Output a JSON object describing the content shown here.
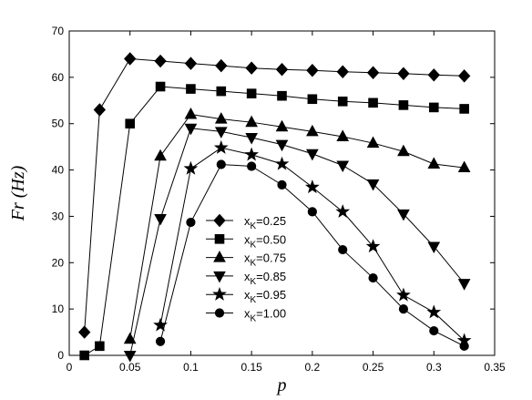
{
  "chart_data": {
    "type": "line",
    "xlabel": "p",
    "ylabel": "Fr  (Hz)",
    "xlim": [
      0,
      0.35
    ],
    "ylim": [
      0,
      70
    ],
    "xticks": [
      0,
      0.05,
      0.1,
      0.15,
      0.2,
      0.25,
      0.3,
      0.35
    ],
    "yticks": [
      0,
      10,
      20,
      30,
      40,
      50,
      60,
      70
    ],
    "xtick_labels": [
      "0",
      "0.05",
      "0.1",
      "0.15",
      "0.2",
      "0.25",
      "0.3",
      "0.35"
    ],
    "ytick_labels": [
      "0",
      "10",
      "20",
      "30",
      "40",
      "50",
      "60",
      "70"
    ],
    "grid": false,
    "legend_position": "center-left",
    "series": [
      {
        "legend_main": "x",
        "legend_sub": "K",
        "legend_value": "=0.25",
        "marker": "diamond",
        "x": [
          0.0125,
          0.025,
          0.05,
          0.075,
          0.1,
          0.125,
          0.15,
          0.175,
          0.2,
          0.225,
          0.25,
          0.275,
          0.3,
          0.325
        ],
        "y": [
          5,
          53,
          64,
          63.5,
          63,
          62.5,
          62,
          61.7,
          61.5,
          61.2,
          61,
          60.8,
          60.5,
          60.3
        ]
      },
      {
        "legend_main": "x",
        "legend_sub": "K",
        "legend_value": "=0.50",
        "marker": "square",
        "x": [
          0.0125,
          0.025,
          0.05,
          0.075,
          0.1,
          0.125,
          0.15,
          0.175,
          0.2,
          0.225,
          0.25,
          0.275,
          0.3,
          0.325
        ],
        "y": [
          0,
          2,
          50,
          58,
          57.5,
          57,
          56.5,
          56,
          55.3,
          54.8,
          54.5,
          54,
          53.5,
          53.2
        ]
      },
      {
        "legend_main": "x",
        "legend_sub": "K",
        "legend_value": "=0.75",
        "marker": "triangle-up",
        "x": [
          0.05,
          0.075,
          0.1,
          0.125,
          0.15,
          0.175,
          0.2,
          0.225,
          0.25,
          0.275,
          0.3,
          0.325
        ],
        "y": [
          3.5,
          43,
          52,
          51,
          50.3,
          49.3,
          48.3,
          47.2,
          45.8,
          44,
          41.3,
          40.5
        ]
      },
      {
        "legend_main": "x",
        "legend_sub": "K",
        "legend_value": "=0.85",
        "marker": "triangle-down",
        "x": [
          0.05,
          0.075,
          0.1,
          0.125,
          0.15,
          0.175,
          0.2,
          0.225,
          0.25,
          0.275,
          0.3,
          0.325
        ],
        "y": [
          0,
          29.5,
          49,
          48.3,
          47,
          45.5,
          43.5,
          41,
          37,
          30.5,
          23.5,
          15.5
        ]
      },
      {
        "legend_main": "x",
        "legend_sub": "K",
        "legend_value": "=0.95",
        "marker": "star",
        "x": [
          0.075,
          0.1,
          0.125,
          0.15,
          0.175,
          0.2,
          0.225,
          0.25,
          0.275,
          0.3,
          0.325
        ],
        "y": [
          6.5,
          40.3,
          44.8,
          43.3,
          41.3,
          36.3,
          31,
          23.5,
          13,
          9.3,
          3.2
        ]
      },
      {
        "legend_main": "x",
        "legend_sub": "K",
        "legend_value": "=1.00",
        "marker": "circle",
        "x": [
          0.075,
          0.1,
          0.125,
          0.15,
          0.175,
          0.2,
          0.225,
          0.25,
          0.275,
          0.3,
          0.325
        ],
        "y": [
          3,
          28.7,
          41.2,
          40.8,
          36.8,
          31,
          22.8,
          16.7,
          10,
          5.3,
          2
        ]
      }
    ]
  }
}
